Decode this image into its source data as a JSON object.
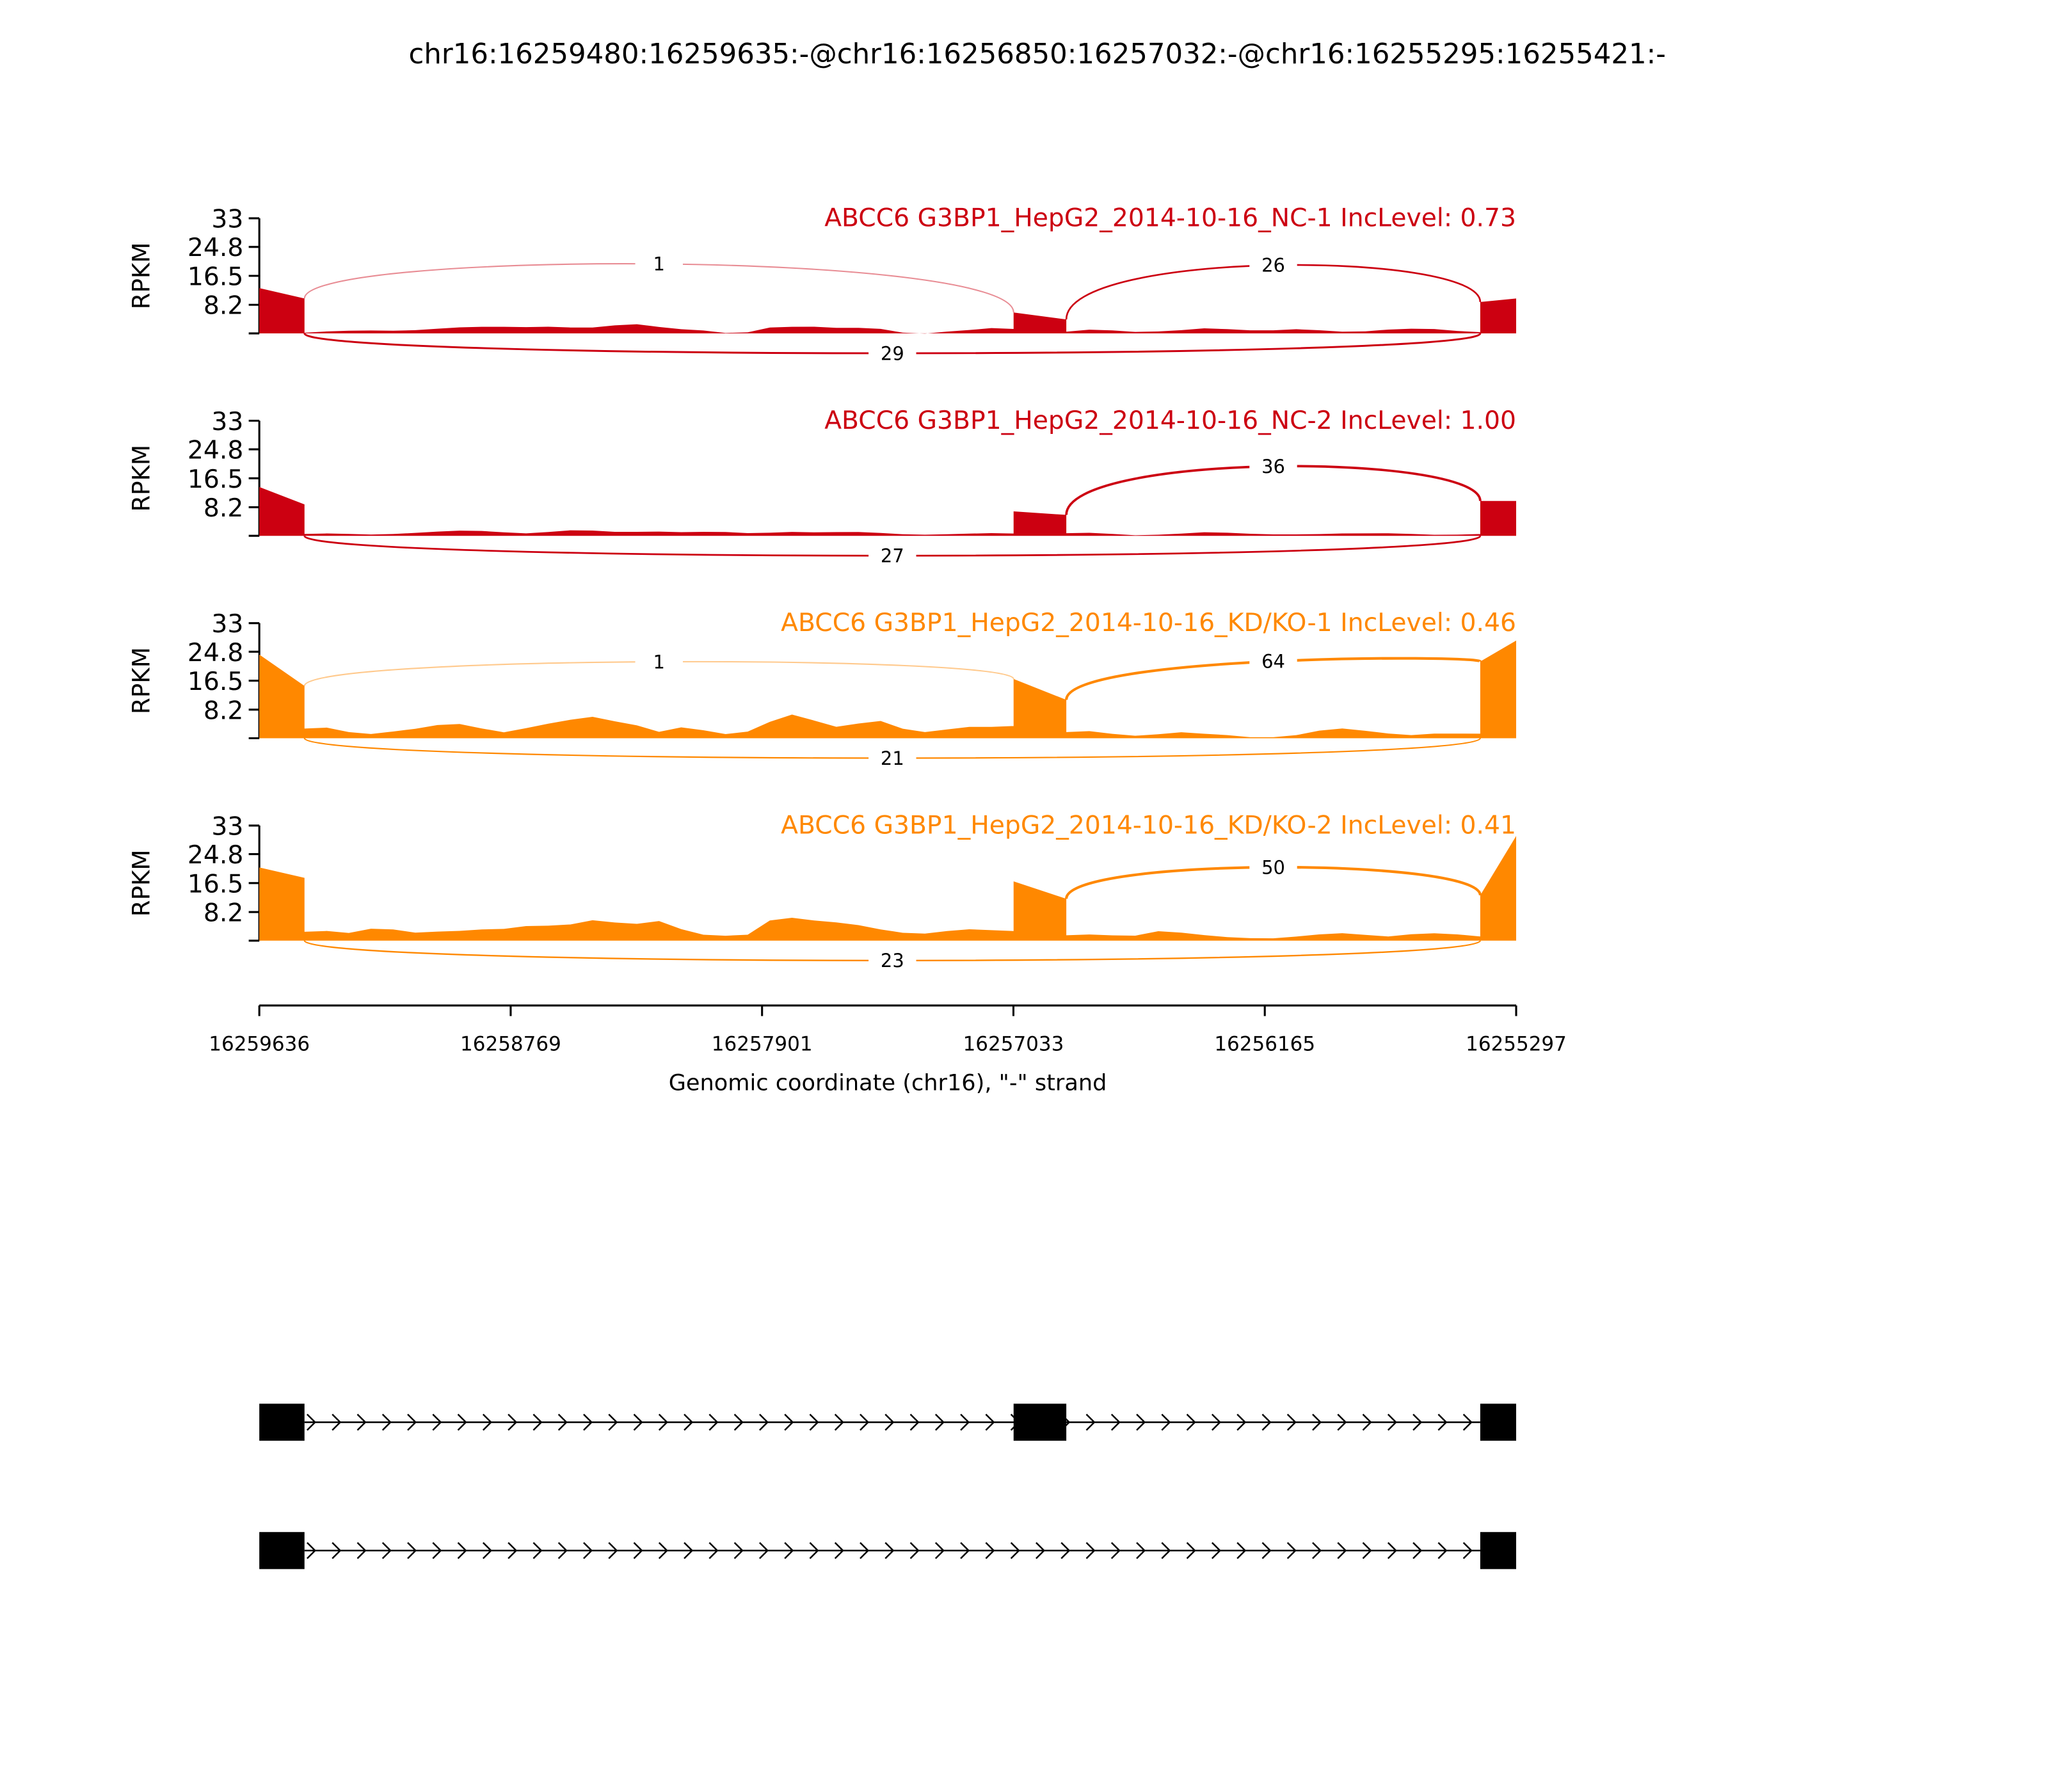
{
  "chart_data": {
    "type": "area",
    "title": "chr16:16259480:16259635:-@chr16:16256850:16257032:-@chr16:16255295:16255421:-",
    "xlabel": "Genomic coordinate (chr16), \"-\" strand",
    "xlim": [
      16259636,
      16255297
    ],
    "xticks": [
      "16259636",
      "16258769",
      "16257901",
      "16257033",
      "16256165",
      "16255297"
    ],
    "ylabel": "RPKM",
    "ylim": [
      0,
      33
    ],
    "yticks": [
      "33",
      "24.8",
      "16.5",
      "8.2"
    ],
    "exons": [
      [
        16259636,
        16259480
      ],
      [
        16257032,
        16256850
      ],
      [
        16255421,
        16255297
      ]
    ],
    "tracks": [
      {
        "label": "ABCC6 G3BP1_HepG2_2014-10-16_NC-1 IncLevel: 0.73",
        "color": "#cc0011",
        "exon_cov": [
          [
            13,
            10
          ],
          [
            6,
            4
          ],
          [
            9,
            10
          ]
        ],
        "intron1_cov": [
          0.2,
          0.3,
          0.5,
          0.8,
          1,
          1.2,
          1.4,
          1.5,
          1.6,
          1.8,
          2,
          2.2,
          1.8,
          1.5,
          2,
          2.5,
          2,
          1.5,
          1,
          0,
          0,
          1.5,
          2,
          2.2,
          1.8,
          1.5,
          1,
          0,
          0,
          0.8,
          1.2,
          1.5,
          1
        ],
        "intron2_cov": [
          0.5,
          0.8,
          0.6,
          0.4,
          0.8,
          1.2,
          1.5,
          1,
          0.6,
          0.8,
          1.4,
          1.2,
          0.6,
          0.4,
          0.8,
          1.2,
          1.4,
          1,
          0.5
        ],
        "junctions": [
          {
            "from": 0,
            "to": 1,
            "count": "1",
            "side": "top"
          },
          {
            "from": 1,
            "to": 2,
            "count": "26",
            "side": "top"
          },
          {
            "from": 0,
            "to": 2,
            "count": "29",
            "side": "bottom"
          }
        ]
      },
      {
        "label": "ABCC6 G3BP1_HepG2_2014-10-16_NC-2 IncLevel: 1.00",
        "color": "#cc0011",
        "exon_cov": [
          [
            14,
            9
          ],
          [
            7,
            6
          ],
          [
            10,
            10
          ]
        ],
        "intron1_cov": [
          0.3,
          0.4,
          0.5,
          0.6,
          0.8,
          0.9,
          1,
          1.2,
          1.3,
          1.2,
          1,
          1.2,
          1.4,
          1.2,
          1,
          1.3,
          1.5,
          1.2,
          1,
          0.8,
          0.6,
          1,
          1.4,
          1.2,
          1,
          0.8,
          0.6,
          0.5,
          0.6,
          0.7,
          0.6,
          0.5,
          0.4
        ],
        "intron2_cov": [
          0.5,
          0.6,
          0.5,
          0.4,
          0.6,
          0.7,
          0.8,
          0.6,
          0.5,
          0.6,
          0.7,
          0.6,
          0.5,
          0.4,
          0.6,
          0.7,
          0.6,
          0.5,
          0.4
        ],
        "junctions": [
          {
            "from": 1,
            "to": 2,
            "count": "36",
            "side": "top"
          },
          {
            "from": 0,
            "to": 2,
            "count": "27",
            "side": "bottom"
          }
        ]
      },
      {
        "label": "ABCC6 G3BP1_HepG2_2014-10-16_KD/KO-1 IncLevel: 0.46",
        "color": "#ff8800",
        "exon_cov": [
          [
            24,
            15
          ],
          [
            17,
            11
          ],
          [
            22,
            28
          ]
        ],
        "intron1_cov": [
          2.5,
          3,
          2,
          1.5,
          2,
          2.5,
          3.5,
          4,
          3,
          2,
          3,
          4,
          5,
          6,
          5,
          4,
          2,
          3,
          2,
          1,
          2,
          5,
          7,
          5,
          3,
          4,
          5,
          3,
          2,
          2.5,
          3,
          3,
          3.5
        ],
        "intron2_cov": [
          1.5,
          2,
          1.5,
          1,
          1.2,
          1.5,
          1,
          0.8,
          0.5,
          0.6,
          1,
          2,
          2.5,
          2,
          1.5,
          1.2,
          1.5,
          1.2,
          1
        ],
        "junctions": [
          {
            "from": 0,
            "to": 1,
            "count": "1",
            "side": "top"
          },
          {
            "from": 1,
            "to": 2,
            "count": "64",
            "side": "top"
          },
          {
            "from": 0,
            "to": 2,
            "count": "21",
            "side": "bottom"
          }
        ]
      },
      {
        "label": "ABCC6 G3BP1_HepG2_2014-10-16_KD/KO-2 IncLevel: 0.41",
        "color": "#ff8800",
        "exon_cov": [
          [
            21,
            18
          ],
          [
            17,
            12
          ],
          [
            13,
            30
          ]
        ],
        "intron1_cov": [
          2.5,
          3,
          2.5,
          3.5,
          3,
          2,
          2.5,
          3,
          3.5,
          3.5,
          4,
          4,
          4.5,
          6,
          5.5,
          5,
          5.5,
          3,
          1.5,
          1.5,
          2,
          6,
          6.5,
          5.5,
          5,
          4.5,
          3.5,
          2.5,
          2,
          2.5,
          3,
          3,
          3
        ],
        "intron2_cov": [
          1.5,
          2,
          1.8,
          1.5,
          2.5,
          2,
          1.5,
          1.2,
          1,
          0.8,
          1,
          1.5,
          2,
          1.8,
          1.5,
          2,
          2,
          1.5,
          1
        ],
        "junctions": [
          {
            "from": 1,
            "to": 2,
            "count": "50",
            "side": "top"
          },
          {
            "from": 0,
            "to": 2,
            "count": "23",
            "side": "bottom"
          }
        ]
      }
    ],
    "gene_models": [
      {
        "exons": [
          0,
          1,
          2
        ]
      },
      {
        "exons": [
          0,
          2
        ]
      }
    ]
  }
}
